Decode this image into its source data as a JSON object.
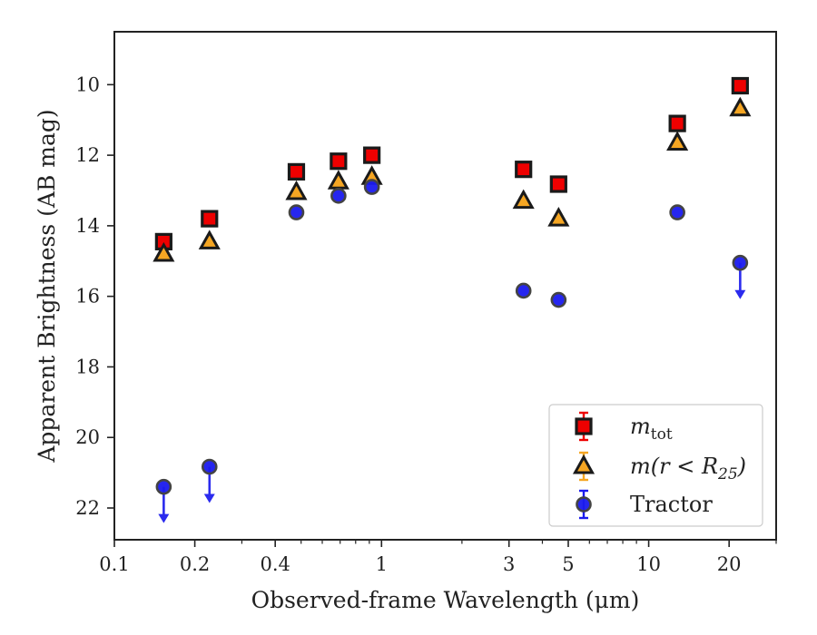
{
  "chart_data": {
    "type": "scatter",
    "xlabel": "Observed-frame Wavelength (μm)",
    "ylabel": "Apparent Brightness (AB mag)",
    "xscale": "log",
    "xlim": [
      0.1,
      30
    ],
    "ylim": [
      22.9,
      8.5
    ],
    "y_inverted": true,
    "grid": false,
    "legend_position": "lower right",
    "x_ticks": [
      {
        "value": 0.1,
        "label": "0.1"
      },
      {
        "value": 0.2,
        "label": "0.2"
      },
      {
        "value": 0.4,
        "label": "0.4"
      },
      {
        "value": 1,
        "label": "1"
      },
      {
        "value": 3,
        "label": "3"
      },
      {
        "value": 5,
        "label": "5"
      },
      {
        "value": 10,
        "label": "10"
      },
      {
        "value": 20,
        "label": "20"
      }
    ],
    "x_minor_ticks": [
      0.3,
      0.5,
      0.6,
      0.7,
      0.8,
      0.9,
      2,
      4,
      6,
      7,
      8,
      9,
      30
    ],
    "y_ticks": [
      {
        "value": 10,
        "label": "10"
      },
      {
        "value": 12,
        "label": "12"
      },
      {
        "value": 14,
        "label": "14"
      },
      {
        "value": 16,
        "label": "16"
      },
      {
        "value": 18,
        "label": "18"
      },
      {
        "value": 20,
        "label": "20"
      },
      {
        "value": 22,
        "label": "22"
      }
    ],
    "series": [
      {
        "key": "mtot",
        "name": "m",
        "name_sub": "tot",
        "marker": "square",
        "color": "#ee0000",
        "edge": "#1a1a1a",
        "points": [
          {
            "x": 0.153,
            "y": 14.45
          },
          {
            "x": 0.227,
            "y": 13.8
          },
          {
            "x": 0.48,
            "y": 12.47
          },
          {
            "x": 0.69,
            "y": 12.17
          },
          {
            "x": 0.92,
            "y": 12.0
          },
          {
            "x": 3.4,
            "y": 12.4
          },
          {
            "x": 4.6,
            "y": 12.82
          },
          {
            "x": 12.8,
            "y": 11.1
          },
          {
            "x": 22.0,
            "y": 10.03
          }
        ]
      },
      {
        "key": "mr25",
        "name": "m(r < R",
        "name_sub": "25",
        "name_suffix": ")",
        "marker": "triangle",
        "color": "#f5a623",
        "edge": "#1a1a1a",
        "points": [
          {
            "x": 0.153,
            "y": 14.8
          },
          {
            "x": 0.227,
            "y": 14.45
          },
          {
            "x": 0.48,
            "y": 13.05
          },
          {
            "x": 0.69,
            "y": 12.75
          },
          {
            "x": 0.92,
            "y": 12.62
          },
          {
            "x": 3.4,
            "y": 13.3
          },
          {
            "x": 4.6,
            "y": 13.8
          },
          {
            "x": 12.8,
            "y": 11.65
          },
          {
            "x": 22.0,
            "y": 10.68
          }
        ]
      },
      {
        "key": "tractor",
        "name": "Tractor",
        "marker": "circle",
        "color": "#1a1aee",
        "edge": "#444444",
        "points": [
          {
            "x": 0.153,
            "y": 21.4,
            "upper_limit": true
          },
          {
            "x": 0.227,
            "y": 20.83,
            "upper_limit": true
          },
          {
            "x": 0.48,
            "y": 13.62
          },
          {
            "x": 0.69,
            "y": 13.15
          },
          {
            "x": 0.92,
            "y": 12.9
          },
          {
            "x": 3.4,
            "y": 15.84
          },
          {
            "x": 4.6,
            "y": 16.1
          },
          {
            "x": 12.8,
            "y": 13.62
          },
          {
            "x": 22.0,
            "y": 15.05,
            "upper_limit": true
          }
        ]
      }
    ]
  }
}
